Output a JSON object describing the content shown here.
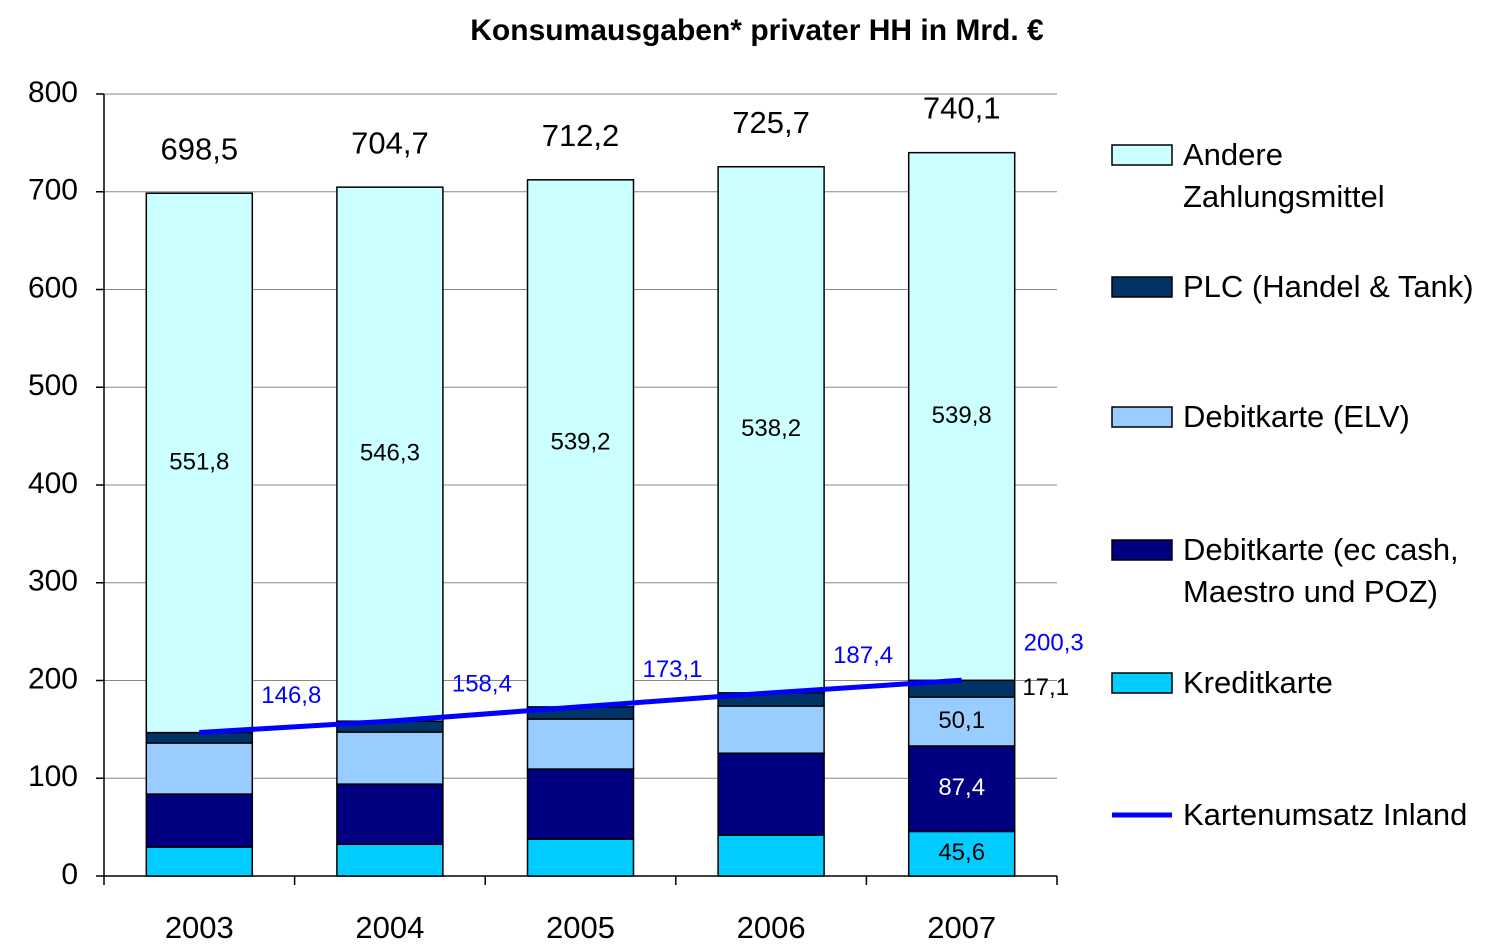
{
  "chart_data": {
    "type": "bar",
    "stacked": true,
    "title": "Konsumausgaben* privater HH in Mrd. €",
    "categories": [
      "2003",
      "2004",
      "2005",
      "2006",
      "2007"
    ],
    "series": [
      {
        "name": "Kreditkarte",
        "color": "#00ccff",
        "values": [
          29.5,
          32.5,
          37.6,
          41.8,
          45.6
        ],
        "value_labels": [
          null,
          null,
          null,
          null,
          "45,6"
        ]
      },
      {
        "name": "Debitkarte (ec cash, Maestro und POZ)",
        "color": "#000080",
        "values": [
          54.3,
          61.5,
          71.8,
          83.8,
          87.4
        ],
        "value_labels": [
          null,
          null,
          null,
          null,
          "87,4"
        ]
      },
      {
        "name": "Debitkarte (ELV)",
        "color": "#99ccff",
        "values": [
          52.3,
          53.3,
          51.2,
          48.3,
          50.1
        ],
        "value_labels": [
          null,
          null,
          null,
          null,
          "50,1"
        ]
      },
      {
        "name": "PLC (Handel & Tank)",
        "color": "#003366",
        "values": [
          10.6,
          11.1,
          12.4,
          13.5,
          17.1
        ],
        "value_labels": [
          null,
          null,
          null,
          null,
          "17,1"
        ]
      },
      {
        "name": "Andere Zahlungsmittel",
        "color": "#ccffff",
        "values": [
          551.8,
          546.3,
          539.2,
          538.2,
          539.8
        ],
        "value_labels": [
          "551,8",
          "546,3",
          "539,2",
          "538,2",
          "539,8"
        ]
      }
    ],
    "totals": [
      698.5,
      704.7,
      712.2,
      725.7,
      740.1
    ],
    "total_labels": [
      "698,5",
      "704,7",
      "712,2",
      "725,7",
      "740,1"
    ],
    "line_series": {
      "name": "Kartenumsatz Inland",
      "color": "#0000ff",
      "values": [
        146.8,
        158.4,
        173.1,
        187.4,
        200.3
      ],
      "value_labels": [
        "146,8",
        "158,4",
        "173,1",
        "187,4",
        "200,3"
      ]
    },
    "ylim": [
      0,
      800
    ],
    "yticks": [
      0,
      100,
      200,
      300,
      400,
      500,
      600,
      700,
      800
    ],
    "grid": true
  }
}
